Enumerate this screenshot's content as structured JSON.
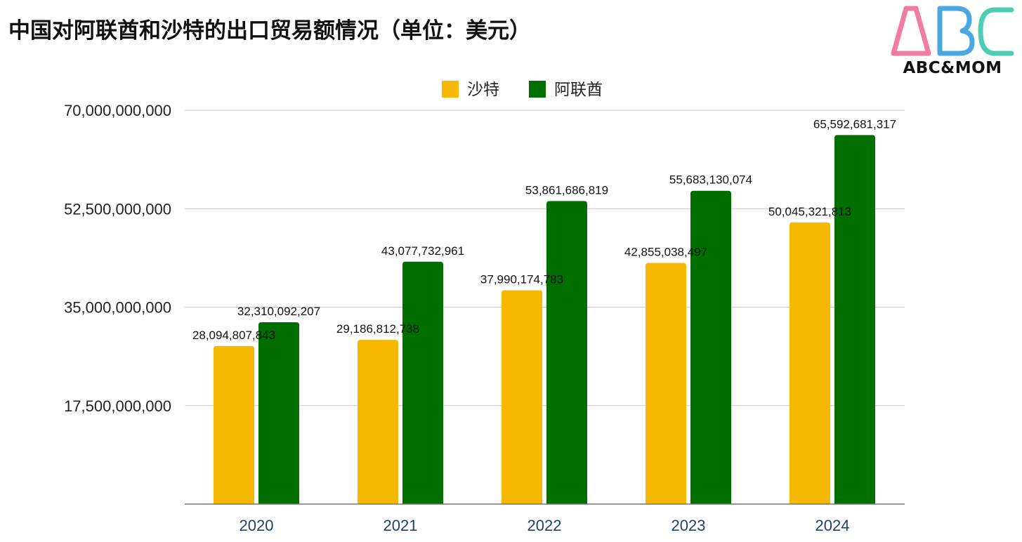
{
  "page": {
    "title": "中国对阿联酋和沙特的出口贸易额情况（单位：美元）"
  },
  "logo": {
    "letters": "ABC",
    "text": "ABC&MOM",
    "colors": {
      "a": "#f07ca6",
      "b": "#49a8e2",
      "c": "#4ccdb4"
    }
  },
  "chart_data": {
    "type": "bar",
    "title": "中国对阿联酋和沙特的出口贸易额情况（单位：美元）",
    "xlabel": "",
    "ylabel": "",
    "categories": [
      "2020",
      "2021",
      "2022",
      "2023",
      "2024"
    ],
    "series": [
      {
        "name": "沙特",
        "color": "#f6b800",
        "values": [
          28094807843,
          29186812738,
          37990174783,
          42855038497,
          50045321813
        ],
        "labels": [
          "28,094,807,843",
          "29,186,812,738",
          "37,990,174,783",
          "42,855,038,497",
          "50,045,321,813"
        ]
      },
      {
        "name": "阿联酋",
        "color": "#006f00",
        "values": [
          32310092207,
          43077732961,
          53861686819,
          55683130074,
          65592681317
        ],
        "labels": [
          "32,310,092,207",
          "43,077,732,961",
          "53,861,686,819",
          "55,683,130,074",
          "65,592,681,317"
        ]
      }
    ],
    "ylim": [
      0,
      70000000000
    ],
    "yticks": [
      17500000000,
      35000000000,
      52500000000,
      70000000000
    ],
    "ytick_labels": [
      "17,500,000,000",
      "35,000,000,000",
      "52,500,000,000",
      "70,000,000,000"
    ],
    "grid": true,
    "legend": "top-center"
  }
}
